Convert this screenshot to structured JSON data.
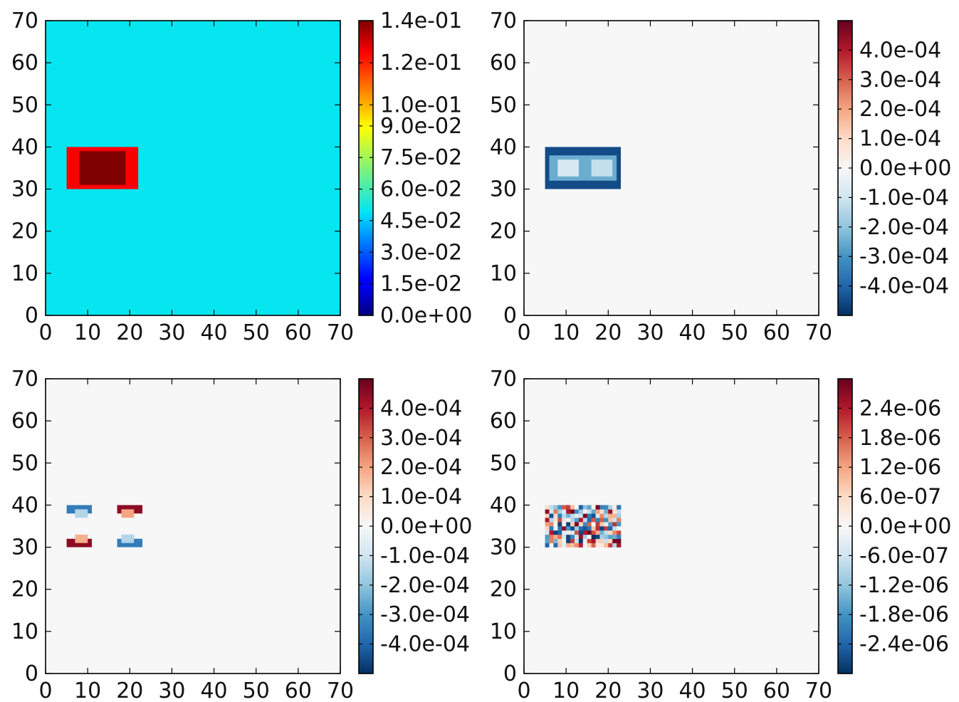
{
  "chart_data": [
    {
      "type": "heatmap",
      "panel": "top-left",
      "colormap": "jet",
      "xlim": [
        0,
        70
      ],
      "ylim": [
        0,
        70
      ],
      "xticks": [
        "0",
        "10",
        "20",
        "30",
        "40",
        "50",
        "60",
        "70"
      ],
      "yticks": [
        "0",
        "10",
        "20",
        "30",
        "40",
        "50",
        "60",
        "70"
      ],
      "colorbar_range": [
        0,
        0.14
      ],
      "colorbar_ticks": [
        {
          "value": 0.0,
          "label": "0.0e+00"
        },
        {
          "value": 0.015,
          "label": "1.5e-02"
        },
        {
          "value": 0.03,
          "label": "3.0e-02"
        },
        {
          "value": 0.045,
          "label": "4.5e-02"
        },
        {
          "value": 0.06,
          "label": "6.0e-02"
        },
        {
          "value": 0.075,
          "label": "7.5e-02"
        },
        {
          "value": 0.09,
          "label": "9.0e-02"
        },
        {
          "value": 0.1,
          "label": "1.0e-01"
        },
        {
          "value": 0.12,
          "label": "1.2e-01"
        },
        {
          "value": 0.14,
          "label": "1.4e-01"
        }
      ],
      "background_value": 0.05,
      "regions": [
        {
          "x": [
            5,
            22
          ],
          "y": [
            30,
            40
          ],
          "value": 0.125
        },
        {
          "x": [
            8,
            19
          ],
          "y": [
            31,
            39
          ],
          "value": 0.14
        }
      ]
    },
    {
      "type": "heatmap",
      "panel": "top-right",
      "colormap": "RdBu_r",
      "xlim": [
        0,
        70
      ],
      "ylim": [
        0,
        70
      ],
      "xticks": [
        "0",
        "10",
        "20",
        "30",
        "40",
        "50",
        "60",
        "70"
      ],
      "yticks": [
        "0",
        "10",
        "20",
        "30",
        "40",
        "50",
        "60",
        "70"
      ],
      "colorbar_range": [
        -0.0005,
        0.0005
      ],
      "colorbar_ticks": [
        {
          "value": -0.0004,
          "label": "-4.0e-04"
        },
        {
          "value": -0.0003,
          "label": "-3.0e-04"
        },
        {
          "value": -0.0002,
          "label": "-2.0e-04"
        },
        {
          "value": -0.0001,
          "label": "-1.0e-04"
        },
        {
          "value": 0.0,
          "label": "0.0e+00"
        },
        {
          "value": 0.0001,
          "label": "1.0e-04"
        },
        {
          "value": 0.0002,
          "label": "2.0e-04"
        },
        {
          "value": 0.0003,
          "label": "3.0e-04"
        },
        {
          "value": 0.0004,
          "label": "4.0e-04"
        }
      ],
      "background_value": 0.0,
      "regions": [
        {
          "x": [
            5,
            23
          ],
          "y": [
            30,
            40
          ],
          "value": -0.00045
        },
        {
          "x": [
            6,
            22
          ],
          "y": [
            32,
            38
          ],
          "value": -0.00025
        },
        {
          "x": [
            8,
            13
          ],
          "y": [
            33,
            37
          ],
          "value": -8e-05
        },
        {
          "x": [
            16,
            21
          ],
          "y": [
            33,
            37
          ],
          "value": -0.00012
        }
      ]
    },
    {
      "type": "heatmap",
      "panel": "bottom-left",
      "colormap": "RdBu_r",
      "xlim": [
        0,
        70
      ],
      "ylim": [
        0,
        70
      ],
      "xticks": [
        "0",
        "10",
        "20",
        "30",
        "40",
        "50",
        "60",
        "70"
      ],
      "yticks": [
        "0",
        "10",
        "20",
        "30",
        "40",
        "50",
        "60",
        "70"
      ],
      "colorbar_range": [
        -0.0005,
        0.0005
      ],
      "colorbar_ticks": [
        {
          "value": -0.0004,
          "label": "-4.0e-04"
        },
        {
          "value": -0.0003,
          "label": "-3.0e-04"
        },
        {
          "value": -0.0002,
          "label": "-2.0e-04"
        },
        {
          "value": -0.0001,
          "label": "-1.0e-04"
        },
        {
          "value": 0.0,
          "label": "0.0e+00"
        },
        {
          "value": 0.0001,
          "label": "1.0e-04"
        },
        {
          "value": 0.0002,
          "label": "2.0e-04"
        },
        {
          "value": 0.0003,
          "label": "3.0e-04"
        },
        {
          "value": 0.0004,
          "label": "4.0e-04"
        }
      ],
      "background_value": 0.0,
      "regions": [
        {
          "x": [
            5,
            11
          ],
          "y": [
            38,
            40
          ],
          "value": -0.00035
        },
        {
          "x": [
            7,
            10
          ],
          "y": [
            37,
            39
          ],
          "value": -0.00015
        },
        {
          "x": [
            17,
            23
          ],
          "y": [
            38,
            40
          ],
          "value": 0.00045
        },
        {
          "x": [
            18,
            21
          ],
          "y": [
            37,
            39
          ],
          "value": 0.0002
        },
        {
          "x": [
            5,
            11
          ],
          "y": [
            30,
            32
          ],
          "value": 0.00045
        },
        {
          "x": [
            7,
            10
          ],
          "y": [
            31,
            33
          ],
          "value": 0.00018
        },
        {
          "x": [
            17,
            23
          ],
          "y": [
            30,
            32
          ],
          "value": -0.00035
        },
        {
          "x": [
            18,
            21
          ],
          "y": [
            31,
            33
          ],
          "value": -0.00015
        }
      ]
    },
    {
      "type": "heatmap",
      "panel": "bottom-right",
      "colormap": "RdBu_r",
      "xlim": [
        0,
        70
      ],
      "ylim": [
        0,
        70
      ],
      "xticks": [
        "0",
        "10",
        "20",
        "30",
        "40",
        "50",
        "60",
        "70"
      ],
      "yticks": [
        "0",
        "10",
        "20",
        "30",
        "40",
        "50",
        "60",
        "70"
      ],
      "colorbar_range": [
        -3e-06,
        3e-06
      ],
      "colorbar_ticks": [
        {
          "value": -2.4e-06,
          "label": "-2.4e-06"
        },
        {
          "value": -1.8e-06,
          "label": "-1.8e-06"
        },
        {
          "value": -1.2e-06,
          "label": "-1.2e-06"
        },
        {
          "value": -6e-07,
          "label": "-6.0e-07"
        },
        {
          "value": 0.0,
          "label": "0.0e+00"
        },
        {
          "value": 6e-07,
          "label": "6.0e-07"
        },
        {
          "value": 1.2e-06,
          "label": "1.2e-06"
        },
        {
          "value": 1.8e-06,
          "label": "1.8e-06"
        },
        {
          "value": 2.4e-06,
          "label": "2.4e-06"
        }
      ],
      "background_value": 0.0,
      "noise_region": {
        "x": [
          5,
          23
        ],
        "y": [
          30,
          40
        ],
        "amplitude": 3e-06,
        "cell": 1
      }
    }
  ]
}
